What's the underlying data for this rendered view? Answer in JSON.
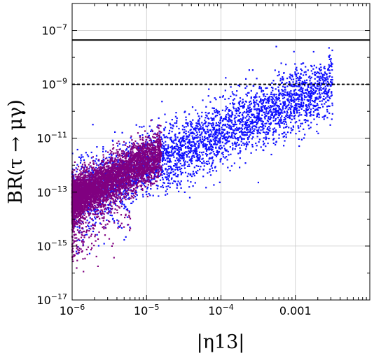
{
  "chart_data": {
    "type": "scatter",
    "title": "",
    "xlabel": "|η13|",
    "ylabel": "BR(τ → μγ)",
    "x_scale": "log",
    "y_scale": "log",
    "xlim": [
      1e-06,
      0.01
    ],
    "ylim": [
      1e-17,
      1e-06
    ],
    "grid": true,
    "x_ticks": [
      {
        "value": 1e-06,
        "label_base": "10",
        "label_exp": "−6"
      },
      {
        "value": 1e-05,
        "label_base": "10",
        "label_exp": "−5"
      },
      {
        "value": 0.0001,
        "label_base": "10",
        "label_exp": "−4"
      },
      {
        "value": 0.001,
        "label_base": "0.001",
        "label_exp": ""
      }
    ],
    "y_ticks": [
      {
        "value": 1e-17,
        "label_base": "10",
        "label_exp": "−17"
      },
      {
        "value": 1e-15,
        "label_base": "10",
        "label_exp": "−15"
      },
      {
        "value": 1e-13,
        "label_base": "10",
        "label_exp": "−13"
      },
      {
        "value": 1e-11,
        "label_base": "10",
        "label_exp": "−11"
      },
      {
        "value": 1e-09,
        "label_base": "10",
        "label_exp": "−9"
      },
      {
        "value": 1e-07,
        "label_base": "10",
        "label_exp": "−7"
      }
    ],
    "series": [
      {
        "color": "#1010ff",
        "marker": "square",
        "region": {
          "x_log_range": [
            -6,
            -2.5
          ],
          "trend": {
            "log_y_at_log_x_-6": -13.2,
            "slope": 1.2
          },
          "spread_log_y": 1.1,
          "x_density": "uniform-in-log",
          "approx_point_count": 3600
        }
      },
      {
        "color": "#800080",
        "marker": "square",
        "region": {
          "x_log_range": [
            -6,
            -4.8
          ],
          "trend": {
            "log_y_at_log_x_-6": -13.3,
            "slope": 1.45
          },
          "spread_log_y": 0.75,
          "x_density": "concentrated-at-low-x",
          "approx_point_count": 4500
        }
      }
    ],
    "reference_lines": [
      {
        "y": 4.4e-08,
        "style": "solid",
        "color": "#000000"
      },
      {
        "y": 1e-09,
        "style": "dashed",
        "color": "#000000"
      }
    ]
  }
}
